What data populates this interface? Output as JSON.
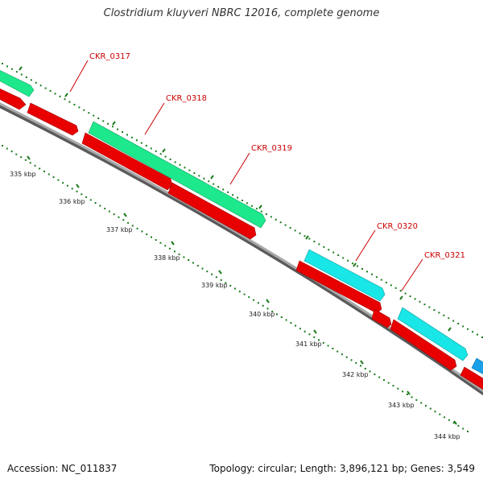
{
  "header": {
    "title": "Clostridium kluyveri NBRC 12016, complete genome"
  },
  "footer": {
    "accession": "Accession: NC_011837",
    "summary": "Topology: circular; Length: 3,896,121 bp; Genes: 3,549"
  },
  "colors": {
    "backbone": "#8c8c8c",
    "red_features": "#e80000",
    "green_features": "#1ee88c",
    "cyan_features": "#19e6e6",
    "blue_features": "#1aa0e8",
    "ticks": "#1a7a1a",
    "label": "#cc0000"
  },
  "genome_map": {
    "ticks": [
      {
        "label": "335 kbp"
      },
      {
        "label": "336 kbp"
      },
      {
        "label": "337 kbp"
      },
      {
        "label": "338 kbp"
      },
      {
        "label": "339 kbp"
      },
      {
        "label": "340 kbp"
      },
      {
        "label": "341 kbp"
      },
      {
        "label": "342 kbp"
      },
      {
        "label": "343 kbp"
      },
      {
        "label": "344 kbp"
      }
    ],
    "gene_labels": [
      {
        "name": "CKR_0317"
      },
      {
        "name": "CKR_0318"
      },
      {
        "name": "CKR_0319"
      },
      {
        "name": "CKR_0320"
      },
      {
        "name": "CKR_0321"
      }
    ]
  }
}
